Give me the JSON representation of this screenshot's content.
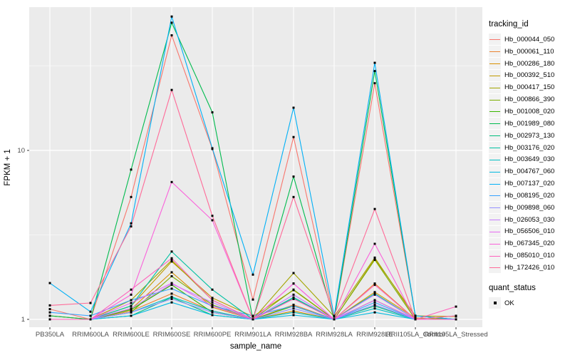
{
  "chart_data": {
    "type": "line",
    "title": "",
    "xlabel": "sample_name",
    "ylabel": "FPKM + 1",
    "yscale": "log10",
    "ylim": [
      0.95,
      70
    ],
    "yticks": [
      1,
      10
    ],
    "yminor": [
      3.1623,
      31.623
    ],
    "grid": true,
    "panel_bg": "#EBEBEB",
    "grid_color": "#FFFFFF",
    "tick_color": "#333333",
    "marker": "black-square",
    "x_categories": [
      "PB350LA",
      "RRIM600LA",
      "RRIM600LE",
      "RRIM600SE",
      "RRIM600PE",
      "RRIM901LA",
      "RRIM928BA",
      "RRIM928LA",
      "RRIM928LE",
      "RRII105LA_Control",
      "RRII105LA_Stressed"
    ],
    "legend": {
      "title": "tracking_id",
      "position": "right"
    },
    "quant_legend": {
      "title": "quant_status",
      "items": [
        {
          "label": "OK",
          "marker": "black-square"
        }
      ]
    },
    "series": [
      {
        "name": "Hb_000044_050",
        "color": "#F8766D",
        "values": [
          1.15,
          1.0,
          5.3,
          48,
          10.2,
          1.31,
          12,
          1.0,
          25,
          1.05,
          1.0
        ]
      },
      {
        "name": "Hb_000061_110",
        "color": "#EA8331",
        "values": [
          1.0,
          1.0,
          1.12,
          1.42,
          1.12,
          1.0,
          1.22,
          1.0,
          1.63,
          1.0,
          1.0
        ]
      },
      {
        "name": "Hb_000286_180",
        "color": "#D89000",
        "values": [
          1.05,
          1.0,
          1.15,
          1.9,
          1.18,
          1.0,
          1.12,
          1.0,
          1.45,
          1.02,
          1.0
        ]
      },
      {
        "name": "Hb_000392_510",
        "color": "#C09B00",
        "values": [
          1.0,
          1.0,
          1.2,
          2.2,
          1.34,
          1.04,
          1.49,
          1.0,
          2.28,
          1.05,
          1.04
        ]
      },
      {
        "name": "Hb_000417_150",
        "color": "#A3A500",
        "values": [
          1.05,
          1.0,
          1.3,
          2.24,
          1.3,
          1.0,
          1.88,
          1.04,
          2.32,
          1.02,
          1.0
        ]
      },
      {
        "name": "Hb_000866_390",
        "color": "#7CAE00",
        "values": [
          1.0,
          1.0,
          1.1,
          1.8,
          1.22,
          1.0,
          1.5,
          1.0,
          2.25,
          1.0,
          1.0
        ]
      },
      {
        "name": "Hb_001008_020",
        "color": "#39B600",
        "values": [
          1.0,
          1.0,
          1.14,
          1.6,
          1.1,
          1.0,
          1.2,
          1.0,
          1.3,
          1.0,
          1.0
        ]
      },
      {
        "name": "Hb_001989_080",
        "color": "#00BB4E",
        "values": [
          1.05,
          1.0,
          7.7,
          57,
          16.8,
          1.0,
          7.0,
          1.0,
          29.5,
          1.05,
          1.0
        ]
      },
      {
        "name": "Hb_002973_130",
        "color": "#00BF7D",
        "values": [
          1.0,
          1.0,
          1.05,
          1.35,
          1.06,
          1.0,
          1.33,
          1.0,
          1.2,
          1.0,
          1.0
        ]
      },
      {
        "name": "Hb_003176_020",
        "color": "#00C1A3",
        "values": [
          1.0,
          1.0,
          1.2,
          2.52,
          1.5,
          1.0,
          1.35,
          1.0,
          1.42,
          1.0,
          1.0
        ]
      },
      {
        "name": "Hb_003649_030",
        "color": "#00BFC4",
        "values": [
          1.0,
          1.0,
          1.1,
          1.36,
          1.12,
          1.0,
          1.1,
          1.0,
          1.16,
          1.0,
          1.0
        ]
      },
      {
        "name": "Hb_004767_060",
        "color": "#00BAE0",
        "values": [
          1.0,
          1.0,
          1.05,
          1.26,
          1.06,
          1.0,
          1.06,
          1.0,
          1.1,
          1.0,
          1.0
        ]
      },
      {
        "name": "Hb_007137_020",
        "color": "#00B0F6",
        "values": [
          1.64,
          1.11,
          3.7,
          62,
          10.3,
          1.84,
          17.9,
          1.05,
          33,
          1.05,
          1.0
        ]
      },
      {
        "name": "Hb_008195_020",
        "color": "#35A2FF",
        "values": [
          1.1,
          1.05,
          1.3,
          1.52,
          1.2,
          1.05,
          1.2,
          1.0,
          1.26,
          1.0,
          1.05
        ]
      },
      {
        "name": "Hb_009898_060",
        "color": "#9590FF",
        "values": [
          1.0,
          1.0,
          1.1,
          1.32,
          1.1,
          1.0,
          1.16,
          1.0,
          1.22,
          1.0,
          1.0
        ]
      },
      {
        "name": "Hb_026053_030",
        "color": "#C77CFF",
        "values": [
          1.0,
          1.0,
          1.16,
          1.62,
          1.26,
          1.0,
          1.4,
          1.0,
          1.4,
          1.0,
          1.0
        ]
      },
      {
        "name": "Hb_056506_010",
        "color": "#E76BF3",
        "values": [
          1.0,
          1.0,
          1.25,
          1.64,
          1.2,
          1.0,
          1.63,
          1.0,
          1.3,
          1.0,
          1.0
        ]
      },
      {
        "name": "Hb_067345_020",
        "color": "#FA62DB",
        "values": [
          1.0,
          1.0,
          1.4,
          6.5,
          3.86,
          1.0,
          1.63,
          1.0,
          2.8,
          1.0,
          1.0
        ]
      },
      {
        "name": "Hb_085010_010",
        "color": "#FF62BC",
        "values": [
          1.0,
          1.0,
          1.5,
          2.3,
          1.3,
          1.0,
          1.32,
          1.0,
          1.6,
          1.0,
          1.19
        ]
      },
      {
        "name": "Hb_172426_010",
        "color": "#FF6A98",
        "values": [
          1.21,
          1.25,
          3.55,
          22.8,
          4.1,
          1.0,
          5.3,
          1.05,
          4.5,
          1.0,
          1.05
        ]
      }
    ]
  }
}
